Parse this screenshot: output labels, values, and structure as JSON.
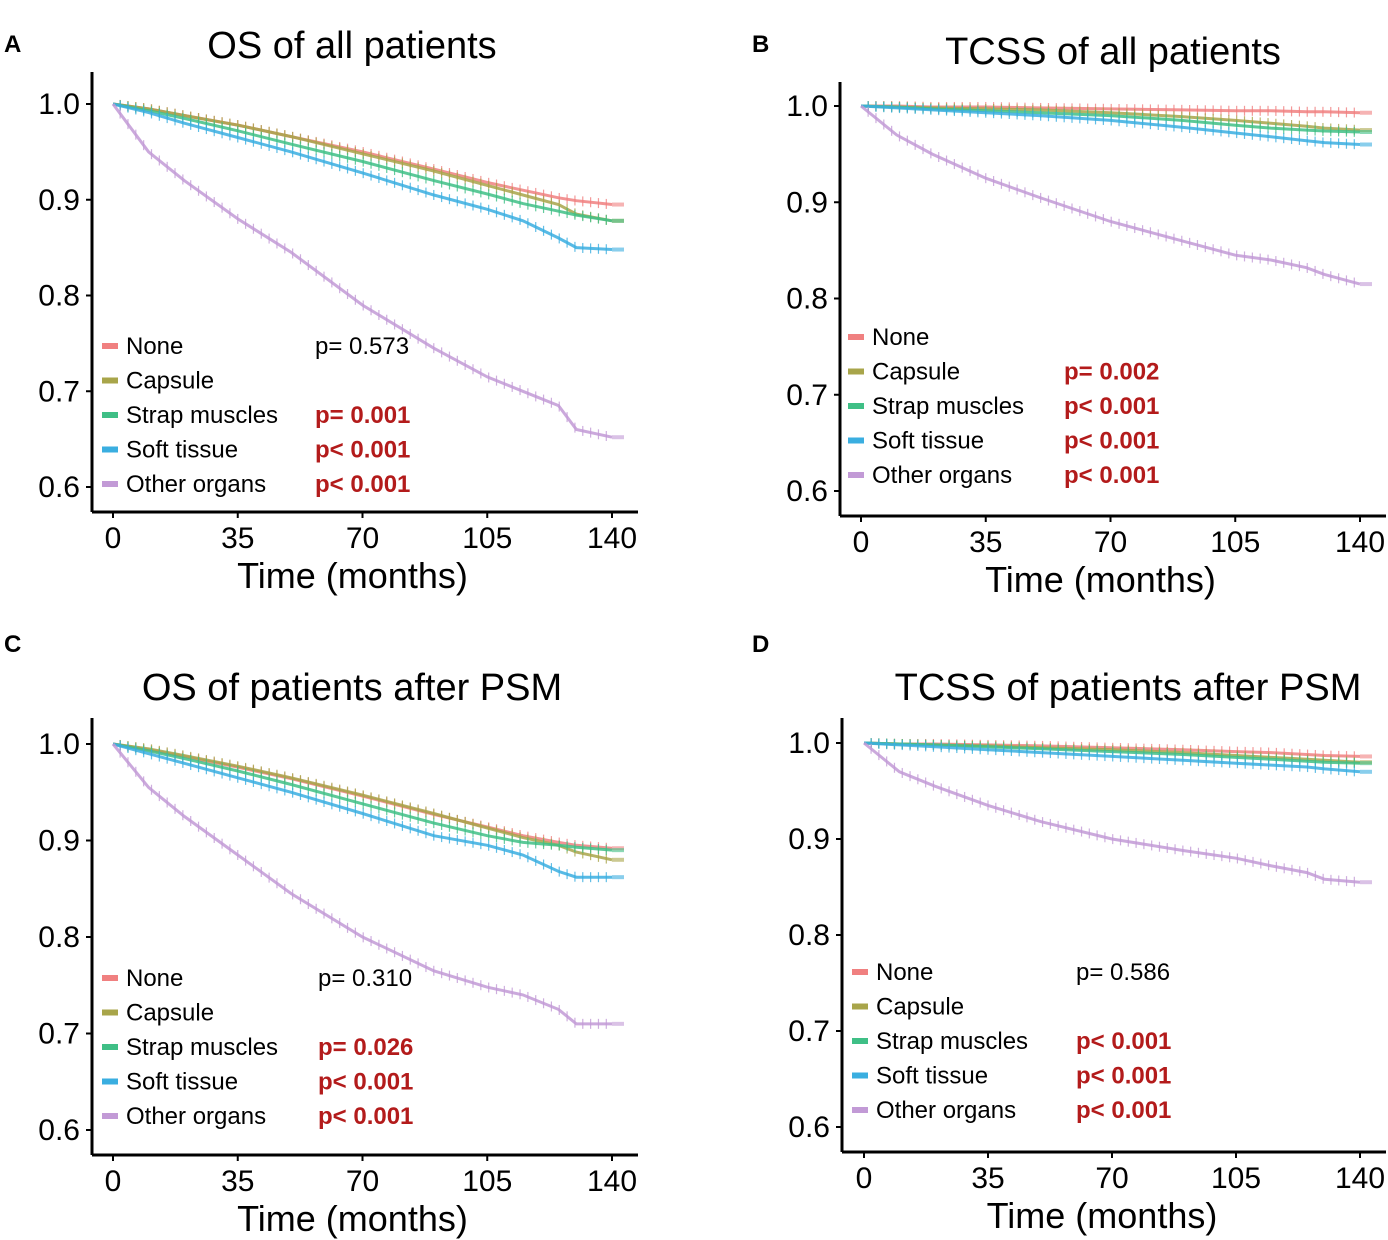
{
  "chart_data": [
    {
      "panel": "A",
      "type": "line",
      "title": "OS of all patients",
      "xlabel": "Time (months)",
      "ylabel": "",
      "xlim": [
        0,
        142
      ],
      "ylim": [
        0.6,
        1.0
      ],
      "xticks": [
        "0",
        "35",
        "70",
        "105",
        "140"
      ],
      "yticks": [
        "0.6",
        "0.7",
        "0.8",
        "0.9",
        "1.0"
      ],
      "x": [
        0,
        10,
        20,
        35,
        50,
        70,
        90,
        105,
        115,
        125,
        130,
        140
      ],
      "series": [
        {
          "name": "None",
          "color": "#f08080",
          "values": [
            1.0,
            0.995,
            0.988,
            0.978,
            0.966,
            0.95,
            0.932,
            0.918,
            0.91,
            0.902,
            0.899,
            0.895
          ],
          "p": "p= 0.573",
          "p_sig": false
        },
        {
          "name": "Capsule",
          "color": "#a8a54a",
          "values": [
            1.0,
            0.995,
            0.988,
            0.978,
            0.966,
            0.948,
            0.93,
            0.915,
            0.905,
            0.895,
            0.885,
            0.878
          ],
          "p": "",
          "p_sig": false
        },
        {
          "name": "Strap muscles",
          "color": "#3fbf86",
          "values": [
            1.0,
            0.993,
            0.985,
            0.972,
            0.958,
            0.94,
            0.92,
            0.906,
            0.896,
            0.888,
            0.884,
            0.878
          ],
          "p": "p= 0.001",
          "p_sig": true
        },
        {
          "name": "Soft tissue",
          "color": "#3aaee0",
          "values": [
            1.0,
            0.991,
            0.98,
            0.965,
            0.95,
            0.928,
            0.905,
            0.89,
            0.878,
            0.86,
            0.85,
            0.848
          ],
          "p": "p< 0.001",
          "p_sig": true
        },
        {
          "name": "Other organs",
          "color": "#c29ad6",
          "values": [
            1.0,
            0.95,
            0.92,
            0.88,
            0.845,
            0.79,
            0.745,
            0.715,
            0.7,
            0.685,
            0.66,
            0.652
          ],
          "p": "p< 0.001",
          "p_sig": true
        }
      ]
    },
    {
      "panel": "B",
      "type": "line",
      "title": "TCSS of all patients",
      "xlabel": "Time (months)",
      "ylabel": "",
      "xlim": [
        0,
        142
      ],
      "ylim": [
        0.6,
        1.0
      ],
      "xticks": [
        "0",
        "35",
        "70",
        "105",
        "140"
      ],
      "yticks": [
        "0.6",
        "0.7",
        "0.8",
        "0.9",
        "1.0"
      ],
      "x": [
        0,
        10,
        20,
        35,
        50,
        70,
        90,
        105,
        115,
        125,
        130,
        140
      ],
      "series": [
        {
          "name": "None",
          "color": "#f08080",
          "values": [
            1.0,
            1.0,
            0.999,
            0.999,
            0.998,
            0.997,
            0.996,
            0.995,
            0.995,
            0.994,
            0.994,
            0.993
          ],
          "p": "",
          "p_sig": false
        },
        {
          "name": "Capsule",
          "color": "#a8a54a",
          "values": [
            1.0,
            0.999,
            0.998,
            0.997,
            0.996,
            0.993,
            0.989,
            0.985,
            0.982,
            0.979,
            0.977,
            0.975
          ],
          "p": "p= 0.002",
          "p_sig": true
        },
        {
          "name": "Strap muscles",
          "color": "#3fbf86",
          "values": [
            1.0,
            0.999,
            0.997,
            0.995,
            0.993,
            0.99,
            0.985,
            0.98,
            0.977,
            0.975,
            0.974,
            0.973
          ],
          "p": "p< 0.001",
          "p_sig": true
        },
        {
          "name": "Soft tissue",
          "color": "#3aaee0",
          "values": [
            1.0,
            0.998,
            0.996,
            0.993,
            0.99,
            0.985,
            0.978,
            0.972,
            0.968,
            0.964,
            0.962,
            0.96
          ],
          "p": "p< 0.001",
          "p_sig": true
        },
        {
          "name": "Other organs",
          "color": "#c29ad6",
          "values": [
            1.0,
            0.97,
            0.95,
            0.925,
            0.905,
            0.88,
            0.86,
            0.845,
            0.84,
            0.832,
            0.825,
            0.815
          ],
          "p": "p< 0.001",
          "p_sig": true
        }
      ]
    },
    {
      "panel": "C",
      "type": "line",
      "title": "OS of patients after PSM",
      "xlabel": "Time (months)",
      "ylabel": "",
      "xlim": [
        0,
        142
      ],
      "ylim": [
        0.6,
        1.0
      ],
      "xticks": [
        "0",
        "35",
        "70",
        "105",
        "140"
      ],
      "yticks": [
        "0.6",
        "0.7",
        "0.8",
        "0.9",
        "1.0"
      ],
      "x": [
        0,
        10,
        20,
        35,
        50,
        70,
        90,
        105,
        115,
        125,
        130,
        140
      ],
      "series": [
        {
          "name": "None",
          "color": "#f08080",
          "values": [
            1.0,
            0.994,
            0.987,
            0.976,
            0.964,
            0.946,
            0.927,
            0.914,
            0.905,
            0.898,
            0.895,
            0.892
          ],
          "p": "p= 0.310",
          "p_sig": false
        },
        {
          "name": "Capsule",
          "color": "#a8a54a",
          "values": [
            1.0,
            0.995,
            0.988,
            0.977,
            0.965,
            0.947,
            0.928,
            0.913,
            0.903,
            0.895,
            0.888,
            0.88
          ],
          "p": "",
          "p_sig": false
        },
        {
          "name": "Strap muscles",
          "color": "#3fbf86",
          "values": [
            1.0,
            0.993,
            0.985,
            0.972,
            0.958,
            0.938,
            0.918,
            0.905,
            0.898,
            0.895,
            0.893,
            0.89
          ],
          "p": "p= 0.026",
          "p_sig": true
        },
        {
          "name": "Soft tissue",
          "color": "#3aaee0",
          "values": [
            1.0,
            0.99,
            0.98,
            0.965,
            0.95,
            0.928,
            0.905,
            0.895,
            0.885,
            0.868,
            0.862,
            0.862
          ],
          "p": "p< 0.001",
          "p_sig": true
        },
        {
          "name": "Other organs",
          "color": "#c29ad6",
          "values": [
            1.0,
            0.955,
            0.925,
            0.885,
            0.845,
            0.8,
            0.765,
            0.748,
            0.74,
            0.725,
            0.71,
            0.71
          ],
          "p": "p< 0.001",
          "p_sig": true
        }
      ]
    },
    {
      "panel": "D",
      "type": "line",
      "title": "TCSS of patients after PSM",
      "xlabel": "Time (months)",
      "ylabel": "",
      "xlim": [
        0,
        142
      ],
      "ylim": [
        0.6,
        1.0
      ],
      "xticks": [
        "0",
        "35",
        "70",
        "105",
        "140"
      ],
      "yticks": [
        "0.6",
        "0.7",
        "0.8",
        "0.9",
        "1.0"
      ],
      "x": [
        0,
        10,
        20,
        35,
        50,
        70,
        90,
        105,
        115,
        125,
        130,
        140
      ],
      "series": [
        {
          "name": "None",
          "color": "#f08080",
          "values": [
            1.0,
            0.999,
            0.999,
            0.998,
            0.997,
            0.995,
            0.993,
            0.991,
            0.99,
            0.988,
            0.987,
            0.986
          ],
          "p": "p= 0.586",
          "p_sig": false
        },
        {
          "name": "Capsule",
          "color": "#a8a54a",
          "values": [
            1.0,
            0.999,
            0.998,
            0.997,
            0.995,
            0.993,
            0.99,
            0.987,
            0.985,
            0.983,
            0.982,
            0.98
          ],
          "p": "",
          "p_sig": false
        },
        {
          "name": "Strap muscles",
          "color": "#3fbf86",
          "values": [
            1.0,
            0.999,
            0.998,
            0.996,
            0.994,
            0.991,
            0.988,
            0.985,
            0.983,
            0.981,
            0.98,
            0.979
          ],
          "p": "p< 0.001",
          "p_sig": true
        },
        {
          "name": "Soft tissue",
          "color": "#3aaee0",
          "values": [
            1.0,
            0.998,
            0.996,
            0.993,
            0.99,
            0.986,
            0.982,
            0.979,
            0.977,
            0.975,
            0.973,
            0.97
          ],
          "p": "p< 0.001",
          "p_sig": true
        },
        {
          "name": "Other organs",
          "color": "#c29ad6",
          "values": [
            1.0,
            0.97,
            0.955,
            0.935,
            0.918,
            0.9,
            0.888,
            0.88,
            0.872,
            0.865,
            0.858,
            0.855
          ],
          "p": "p< 0.001",
          "p_sig": true
        }
      ]
    }
  ]
}
